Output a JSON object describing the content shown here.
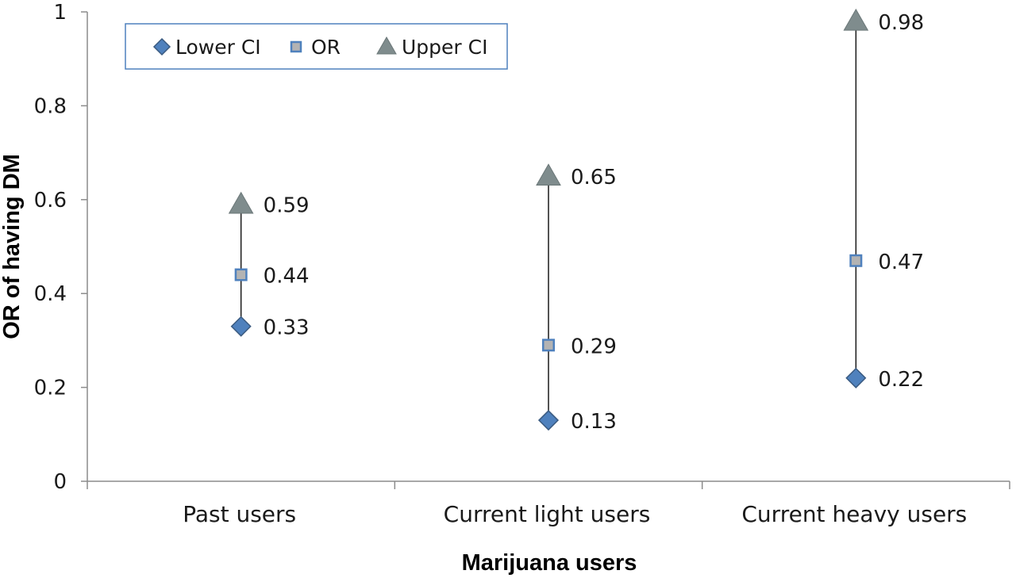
{
  "chart_data": {
    "type": "scatter",
    "title": "",
    "xlabel": "Marijuana users",
    "ylabel": "OR of having DM",
    "ylim": [
      0,
      1
    ],
    "yticks": [
      0,
      0.2,
      0.4,
      0.6,
      0.8,
      1
    ],
    "ytick_labels": [
      "0",
      "0.2",
      "0.4",
      "0.6",
      "0.8",
      "1"
    ],
    "categories": [
      "Past users",
      "Current light users",
      "Current heavy users"
    ],
    "grid": false,
    "legend_position": "top-left",
    "series": [
      {
        "name": "Lower CI",
        "marker": "diamond",
        "color": "#4F81BD",
        "values": [
          0.33,
          0.13,
          0.22
        ],
        "labels": [
          "0.33",
          "0.13",
          "0.22"
        ]
      },
      {
        "name": "OR",
        "marker": "square",
        "color": "#B3B3B3",
        "edge_color": "#4F81BD",
        "values": [
          0.44,
          0.29,
          0.47
        ],
        "labels": [
          "0.44",
          "0.29",
          "0.47"
        ]
      },
      {
        "name": "Upper CI",
        "marker": "triangle",
        "color": "#7F8C8D",
        "values": [
          0.59,
          0.65,
          0.98
        ],
        "labels": [
          "0.59",
          "0.65",
          "0.98"
        ]
      }
    ],
    "range_lines": true
  }
}
